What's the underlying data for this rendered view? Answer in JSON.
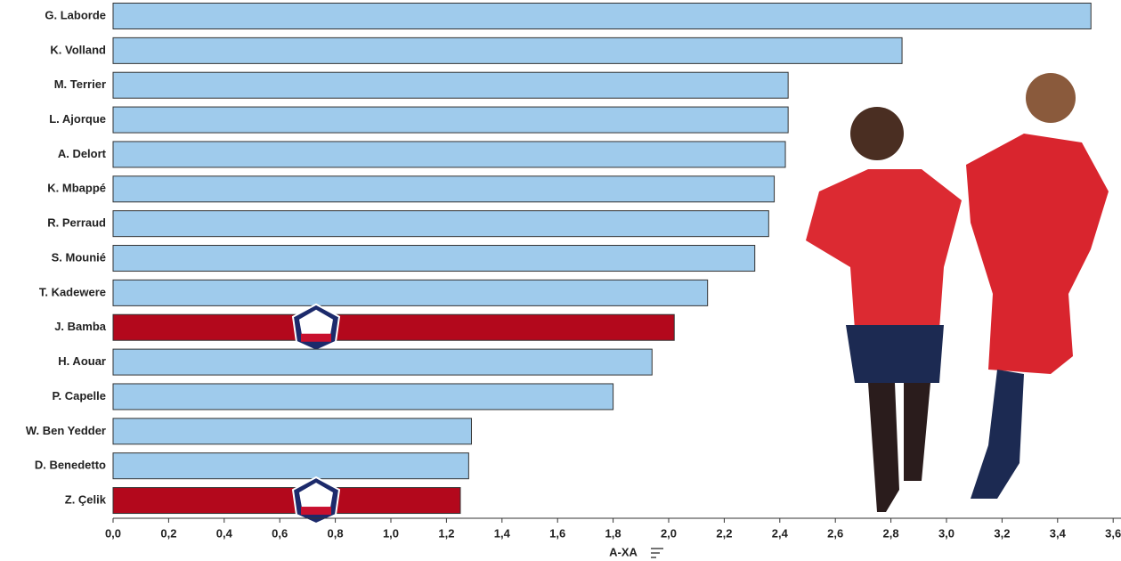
{
  "chart_data": {
    "type": "barh",
    "categories": [
      "G. Laborde",
      "K. Volland",
      "M. Terrier",
      "L. Ajorque",
      "A. Delort",
      "K. Mbappé",
      "R. Perraud",
      "S. Mounié",
      "T. Kadewere",
      "J. Bamba",
      "H. Aouar",
      "P. Capelle",
      "W. Ben Yedder",
      "D. Benedetto",
      "Z. Çelik"
    ],
    "values": [
      3.52,
      2.84,
      2.43,
      2.43,
      2.42,
      2.38,
      2.36,
      2.31,
      2.14,
      2.02,
      1.94,
      1.8,
      1.29,
      1.28,
      1.25
    ],
    "colors": [
      "#9fcbec",
      "#9fcbec",
      "#9fcbec",
      "#9fcbec",
      "#9fcbec",
      "#9fcbec",
      "#9fcbec",
      "#9fcbec",
      "#9fcbec",
      "#b3081c",
      "#9fcbec",
      "#9fcbec",
      "#9fcbec",
      "#9fcbec",
      "#b3081c"
    ],
    "xlabel": "A-XA",
    "xlim": [
      0,
      3.6
    ],
    "xticks": [
      {
        "value": 0,
        "label": "0,0"
      },
      {
        "value": 0.2,
        "label": "0,2"
      },
      {
        "value": 0.4,
        "label": "0,4"
      },
      {
        "value": 0.6,
        "label": "0,6"
      },
      {
        "value": 0.8,
        "label": "0,8"
      },
      {
        "value": 1.0,
        "label": "1,0"
      },
      {
        "value": 1.2,
        "label": "1,2"
      },
      {
        "value": 1.4,
        "label": "1,4"
      },
      {
        "value": 1.6,
        "label": "1,6"
      },
      {
        "value": 1.8,
        "label": "1,8"
      },
      {
        "value": 2.0,
        "label": "2,0"
      },
      {
        "value": 2.2,
        "label": "2,2"
      },
      {
        "value": 2.4,
        "label": "2,4"
      },
      {
        "value": 2.6,
        "label": "2,6"
      },
      {
        "value": 2.8,
        "label": "2,8"
      },
      {
        "value": 3.0,
        "label": "3,0"
      },
      {
        "value": 3.2,
        "label": "3,2"
      },
      {
        "value": 3.4,
        "label": "3,4"
      },
      {
        "value": 3.6,
        "label": "3,6"
      }
    ]
  }
}
